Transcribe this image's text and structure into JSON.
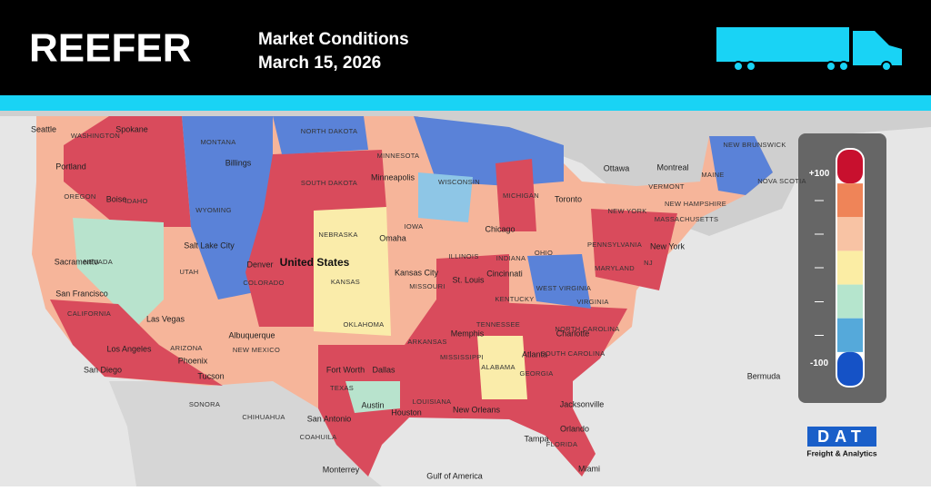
{
  "header": {
    "title": "REEFER",
    "subtitle": "Market Conditions",
    "date": "March 15, 2026"
  },
  "legend": {
    "labels": [
      "+100",
      "—",
      "—",
      "—",
      "—",
      "—",
      "-100"
    ],
    "colors": [
      "#c8102e",
      "#ef8458",
      "#f8c3a4",
      "#fbeda4",
      "#b5e5cd",
      "#55a9da",
      "#1552c6"
    ]
  },
  "logo": {
    "name": "DAT",
    "tagline": "Freight & Analytics"
  },
  "map": {
    "labels": [
      "Seattle",
      "WASHINGTON",
      "Spokane",
      "MONTANA",
      "NORTH DAKOTA",
      "MINNESOTA",
      "Portland",
      "Billings",
      "OREGON",
      "IDAHO",
      "Boise",
      "SOUTH DAKOTA",
      "Minneapolis",
      "WISCONSIN",
      "MICHIGAN",
      "Toronto",
      "Ottawa",
      "Montreal",
      "MAINE",
      "VERMONT",
      "NEW HAMPSHIRE",
      "MASSACHUSETTS",
      "NEW YORK",
      "WYOMING",
      "IOWA",
      "Chicago",
      "NEBRASKA",
      "Omaha",
      "Salt Lake City",
      "NEVADA",
      "UTAH",
      "Denver",
      "United States",
      "COLORADO",
      "ILLINOIS",
      "INDIANA",
      "OHIO",
      "PENNSYLVANIA",
      "New York",
      "Kansas City",
      "St. Louis",
      "Cincinnati",
      "KANSAS",
      "MISSOURI",
      "WEST VIRGINIA",
      "MARYLAND",
      "NJ",
      "Sacramento",
      "San Francisco",
      "KENTUCKY",
      "VIRGINIA",
      "CALIFORNIA",
      "Las Vegas",
      "Albuquerque",
      "OKLAHOMA",
      "TENNESSEE",
      "NORTH CAROLINA",
      "Memphis",
      "Charlotte",
      "ARIZONA",
      "NEW MEXICO",
      "ARKANSAS",
      "Los Angeles",
      "Phoenix",
      "Atlanta",
      "SOUTH CAROLINA",
      "MISSISSIPPI",
      "ALABAMA",
      "GEORGIA",
      "Fort Worth",
      "Dallas",
      "San Diego",
      "Tucson",
      "Bermuda",
      "TEXAS",
      "LOUISIANA",
      "Austin",
      "Houston",
      "New Orleans",
      "Jacksonville",
      "San Antonio",
      "Orlando",
      "Tampa",
      "FLORIDA",
      "Miami",
      "Monterrey",
      "Gulf of America",
      "SONORA",
      "CHIHUAHUA",
      "COAHUILA",
      "NOVA SCOTIA",
      "NEW BRUNSWICK"
    ]
  }
}
